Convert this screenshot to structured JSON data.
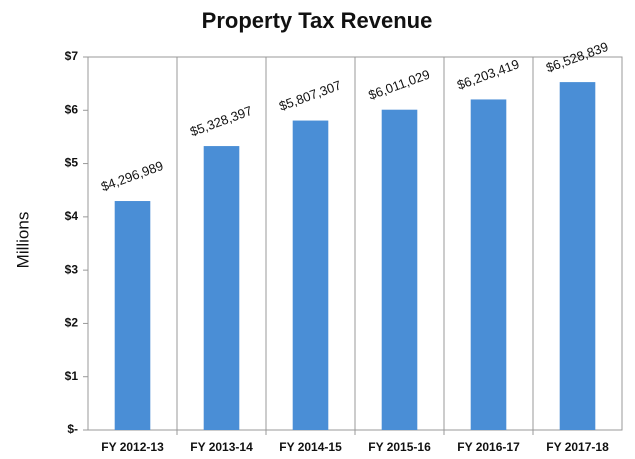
{
  "chart_data": {
    "type": "bar",
    "title": "Property Tax Revenue",
    "y_label": "Millions",
    "categories": [
      "FY 2012-13",
      "FY 2013-14",
      "FY 2014-15",
      "FY 2015-16",
      "FY 2016-17",
      "FY 2017-18"
    ],
    "values": [
      4.296989,
      5.328397,
      5.807307,
      6.011029,
      6.203419,
      6.528839
    ],
    "value_labels": [
      "$4,296,989",
      "$5,328,397",
      "$5,807,307",
      "$6,011,029",
      "$6,203,419",
      "$6,528,839"
    ],
    "color": "#4a8ed6",
    "ylim": [
      0,
      7
    ],
    "yticks": [
      {
        "value": 0,
        "label": "$-"
      },
      {
        "value": 1,
        "label": "$1"
      },
      {
        "value": 2,
        "label": "$2"
      },
      {
        "value": 3,
        "label": "$3"
      },
      {
        "value": 4,
        "label": "$4"
      },
      {
        "value": 5,
        "label": "$5"
      },
      {
        "value": 6,
        "label": "$6"
      },
      {
        "value": 7,
        "label": "$7"
      }
    ]
  }
}
